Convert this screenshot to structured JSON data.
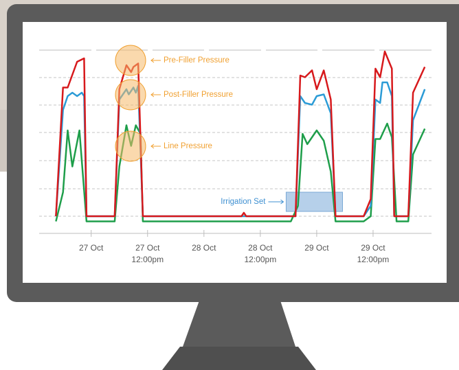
{
  "chart_data": {
    "type": "line",
    "xlim": [
      -8,
      72
    ],
    "ylim": [
      0,
      110
    ],
    "xticks": [
      {
        "value": 0,
        "label": "27 Oct"
      },
      {
        "value": 12,
        "label": "27 Oct\n12:00pm"
      },
      {
        "value": 24,
        "label": "28 Oct"
      },
      {
        "value": 36,
        "label": "28 Oct\n12:00pm"
      },
      {
        "value": 48,
        "label": "29 Oct"
      },
      {
        "value": 60,
        "label": "29 Oct\n12:00pm"
      }
    ],
    "series": [
      {
        "name": "Pre-Filler Pressure",
        "color": "#d7191c",
        "x": [
          -7.5,
          -6,
          -5,
          -3,
          -1.5,
          -1,
          5,
          6,
          7.5,
          8.5,
          9,
          10,
          11,
          32,
          32.5,
          33,
          43.5,
          44.5,
          45.5,
          47,
          48,
          49.5,
          51,
          52,
          58,
          59.5,
          60.5,
          61.5,
          62.5,
          64,
          64.5,
          67.5,
          68.5,
          71
        ],
        "values": [
          8,
          83,
          83,
          98,
          100,
          8,
          8,
          82,
          96,
          92,
          95,
          97,
          8,
          8,
          10,
          8,
          8,
          90,
          89,
          93,
          82,
          93,
          76,
          8,
          8,
          18,
          94,
          89,
          104,
          94,
          8,
          8,
          80,
          95
        ]
      },
      {
        "name": "Post-Filler Pressure",
        "color": "#2b9bd6",
        "x": [
          -7.5,
          -6,
          -5,
          -4,
          -3,
          -2,
          -1.5,
          -1,
          5,
          6,
          7.5,
          8,
          9,
          9.5,
          10,
          11,
          43.5,
          44.5,
          45.5,
          47,
          48,
          49.5,
          51,
          52,
          58,
          59.5,
          60.5,
          61.5,
          62,
          63,
          64,
          64.5,
          67.5,
          68.5,
          71
        ],
        "values": [
          8,
          70,
          78,
          80,
          78,
          80,
          78,
          8,
          8,
          76,
          82,
          79,
          83,
          80,
          84,
          8,
          8,
          78,
          74,
          73,
          78,
          79,
          68,
          8,
          8,
          14,
          76,
          74,
          86,
          86,
          78,
          8,
          8,
          64,
          82
        ]
      },
      {
        "name": "Line Pressure",
        "color": "#1e9e4a",
        "x": [
          -7.5,
          -6,
          -5,
          -4,
          -2.5,
          -1,
          5,
          6,
          7.5,
          8.5,
          9.5,
          10.5,
          11,
          42.5,
          44,
          45,
          46,
          48,
          49.5,
          51,
          52,
          58,
          59.5,
          60.5,
          61.5,
          63,
          64,
          65,
          67.5,
          68.5,
          71
        ],
        "values": [
          5,
          22,
          58,
          37,
          58,
          5,
          5,
          37,
          61,
          49,
          61,
          56,
          5,
          5,
          14,
          56,
          50,
          58,
          52,
          34,
          5,
          5,
          8,
          53,
          53,
          62,
          54,
          5,
          5,
          44,
          59
        ]
      }
    ],
    "irrigation": {
      "label": "Irrigation Set",
      "x_start": 41.5,
      "x_end": 53.5
    }
  }
}
